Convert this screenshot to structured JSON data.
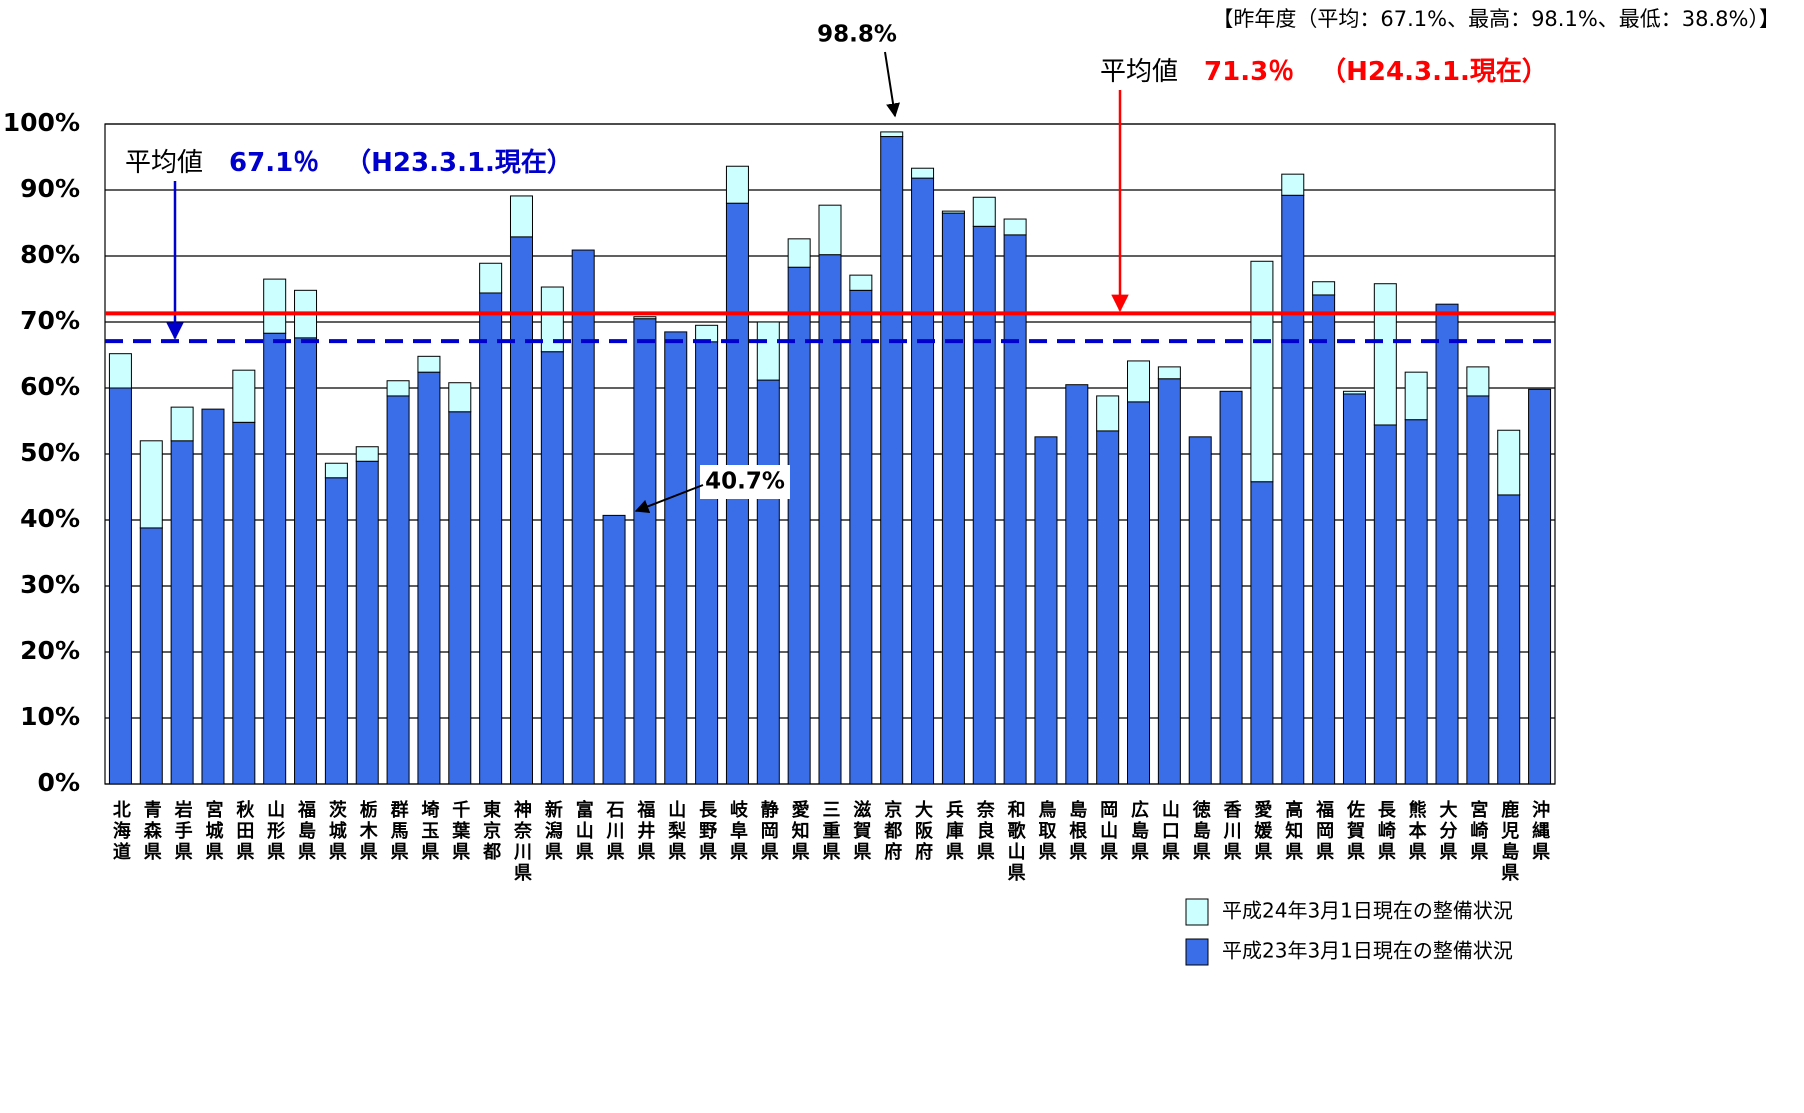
{
  "chart_data": {
    "type": "stacked_bar",
    "note": "【昨年度（平均：67.1%、最高：98.1%、最低：38.8%）】",
    "categories": [
      "北海道",
      "青森県",
      "岩手県",
      "宮城県",
      "秋田県",
      "山形県",
      "福島県",
      "茨城県",
      "栃木県",
      "群馬県",
      "埼玉県",
      "千葉県",
      "東京都",
      "神奈川県",
      "新潟県",
      "富山県",
      "石川県",
      "福井県",
      "山梨県",
      "長野県",
      "岐阜県",
      "静岡県",
      "愛知県",
      "三重県",
      "滋賀県",
      "京都府",
      "大阪府",
      "兵庫県",
      "奈良県",
      "和歌山県",
      "鳥取県",
      "島根県",
      "岡山県",
      "広島県",
      "山口県",
      "徳島県",
      "香川県",
      "愛媛県",
      "高知県",
      "福岡県",
      "佐賀県",
      "長崎県",
      "熊本県",
      "大分県",
      "宮崎県",
      "鹿児島県",
      "沖縄県"
    ],
    "series": [
      {
        "name": "平成23年3月1日現在の整備状況",
        "color": "#3a6ee8",
        "values": [
          60.0,
          38.8,
          52.0,
          56.8,
          54.8,
          68.3,
          67.6,
          46.4,
          48.9,
          58.8,
          62.4,
          56.4,
          74.4,
          82.9,
          65.5,
          80.9,
          40.7,
          70.5,
          68.5,
          67.0,
          88.0,
          61.2,
          78.3,
          80.2,
          74.8,
          98.1,
          91.8,
          86.5,
          84.5,
          83.2,
          52.6,
          60.5,
          53.5,
          57.9,
          61.4,
          52.6,
          59.5,
          45.8,
          89.2,
          74.1,
          59.1,
          54.4,
          55.2,
          72.7,
          58.8,
          43.8,
          59.8
        ]
      },
      {
        "name": "平成24年3月1日現在の整備状況",
        "color": "#ccffff",
        "values": [
          5.2,
          13.2,
          5.1,
          0,
          7.9,
          8.2,
          7.2,
          2.2,
          2.2,
          2.3,
          2.4,
          4.4,
          4.5,
          6.2,
          9.8,
          0,
          0,
          0.3,
          0,
          2.5,
          5.6,
          8.8,
          4.3,
          7.5,
          2.3,
          0.7,
          1.5,
          0.3,
          4.4,
          2.4,
          0,
          0,
          5.3,
          6.2,
          1.8,
          0,
          0,
          33.4,
          3.2,
          2.0,
          0.4,
          21.4,
          7.2,
          0,
          4.4,
          9.8,
          0
        ]
      }
    ],
    "ylim": [
      0,
      100
    ],
    "yticks": [
      {
        "value": 0,
        "label": "0%"
      },
      {
        "value": 10,
        "label": "10%"
      },
      {
        "value": 20,
        "label": "20%"
      },
      {
        "value": 30,
        "label": "30%"
      },
      {
        "value": 40,
        "label": "40%"
      },
      {
        "value": 50,
        "label": "50%"
      },
      {
        "value": 60,
        "label": "60%"
      },
      {
        "value": 70,
        "label": "70%"
      },
      {
        "value": 80,
        "label": "80%"
      },
      {
        "value": 90,
        "label": "90%"
      },
      {
        "value": 100,
        "label": "100%"
      }
    ],
    "grid": true,
    "reference_lines": [
      {
        "prefix": "平均値",
        "value": 67.1,
        "label": "67.1％",
        "note": "（H23.3.1.現在）",
        "color": "#0000cc",
        "style": "dashed"
      },
      {
        "prefix": "平均値",
        "value": 71.3,
        "label": "71.3％",
        "note": "（H24.3.1.現在）",
        "color": "#ff0000",
        "style": "solid"
      }
    ],
    "annotations": [
      {
        "text": "98.8%"
      },
      {
        "text": "40.7%"
      }
    ]
  }
}
